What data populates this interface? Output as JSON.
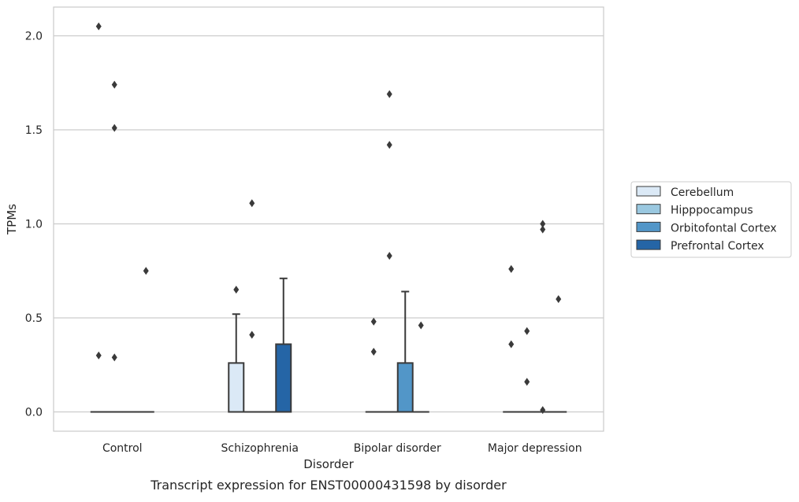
{
  "chart_data": {
    "type": "box",
    "title": "",
    "caption": "Transcript expression for ENST00000431598 by disorder",
    "xlabel": "Disorder",
    "ylabel": "TPMs",
    "ylim": [
      -0.1,
      2.15
    ],
    "yticks": [
      0.0,
      0.5,
      1.0,
      1.5,
      2.0
    ],
    "ytick_labels": [
      "0.0",
      "0.5",
      "1.0",
      "1.5",
      "2.0"
    ],
    "grid": "horizontal",
    "legend_position": "right",
    "categories": [
      "Control",
      "Schizophrenia",
      "Bipolar disorder",
      "Major depression"
    ],
    "series": [
      {
        "name": "Cerebellum",
        "color": "#dbe9f6",
        "boxes": [
          {
            "category": "Control",
            "q1": 0,
            "median": 0,
            "q3": 0,
            "whisker_low": 0,
            "whisker_high": 0,
            "outliers": [
              2.05,
              0.3
            ]
          },
          {
            "category": "Schizophrenia",
            "q1": 0,
            "median": 0,
            "q3": 0.26,
            "whisker_low": 0,
            "whisker_high": 0.52,
            "outliers": [
              0.65
            ]
          },
          {
            "category": "Bipolar disorder",
            "q1": 0,
            "median": 0,
            "q3": 0,
            "whisker_low": 0,
            "whisker_high": 0,
            "outliers": [
              0.48,
              0.32
            ]
          },
          {
            "category": "Major depression",
            "q1": 0,
            "median": 0,
            "q3": 0,
            "whisker_low": 0,
            "whisker_high": 0,
            "outliers": [
              0.76,
              0.36
            ]
          }
        ]
      },
      {
        "name": "Hipppocampus",
        "color": "#9ac8e0",
        "boxes": [
          {
            "category": "Control",
            "q1": 0,
            "median": 0,
            "q3": 0,
            "whisker_low": 0,
            "whisker_high": 0,
            "outliers": [
              1.74,
              1.51,
              0.29
            ]
          },
          {
            "category": "Schizophrenia",
            "q1": 0,
            "median": 0,
            "q3": 0,
            "whisker_low": 0,
            "whisker_high": 0,
            "outliers": [
              1.11,
              0.41
            ]
          },
          {
            "category": "Bipolar disorder",
            "q1": 0,
            "median": 0,
            "q3": 0,
            "whisker_low": 0,
            "whisker_high": 0,
            "outliers": [
              1.69,
              1.42,
              0.83
            ]
          },
          {
            "category": "Major depression",
            "q1": 0,
            "median": 0,
            "q3": 0,
            "whisker_low": 0,
            "whisker_high": 0,
            "outliers": [
              0.43,
              0.16
            ]
          }
        ]
      },
      {
        "name": "Orbitofontal Cortex",
        "color": "#5296c8",
        "boxes": [
          {
            "category": "Control",
            "q1": 0,
            "median": 0,
            "q3": 0,
            "whisker_low": 0,
            "whisker_high": 0,
            "outliers": []
          },
          {
            "category": "Schizophrenia",
            "q1": 0,
            "median": 0,
            "q3": 0,
            "whisker_low": 0,
            "whisker_high": 0,
            "outliers": []
          },
          {
            "category": "Bipolar disorder",
            "q1": 0,
            "median": 0,
            "q3": 0.26,
            "whisker_low": 0,
            "whisker_high": 0.64,
            "outliers": []
          },
          {
            "category": "Major depression",
            "q1": 0,
            "median": 0,
            "q3": 0,
            "whisker_low": 0,
            "whisker_high": 0,
            "outliers": [
              1.0,
              0.97,
              0.01
            ]
          }
        ]
      },
      {
        "name": "Prefrontal Cortex",
        "color": "#2565a6",
        "boxes": [
          {
            "category": "Control",
            "q1": 0,
            "median": 0,
            "q3": 0,
            "whisker_low": 0,
            "whisker_high": 0,
            "outliers": [
              0.75
            ]
          },
          {
            "category": "Schizophrenia",
            "q1": 0,
            "median": 0,
            "q3": 0.36,
            "whisker_low": 0,
            "whisker_high": 0.71,
            "outliers": []
          },
          {
            "category": "Bipolar disorder",
            "q1": 0,
            "median": 0,
            "q3": 0,
            "whisker_low": 0,
            "whisker_high": 0,
            "outliers": [
              0.46
            ]
          },
          {
            "category": "Major depression",
            "q1": 0,
            "median": 0,
            "q3": 0,
            "whisker_low": 0,
            "whisker_high": 0,
            "outliers": [
              0.6
            ]
          }
        ]
      }
    ]
  }
}
